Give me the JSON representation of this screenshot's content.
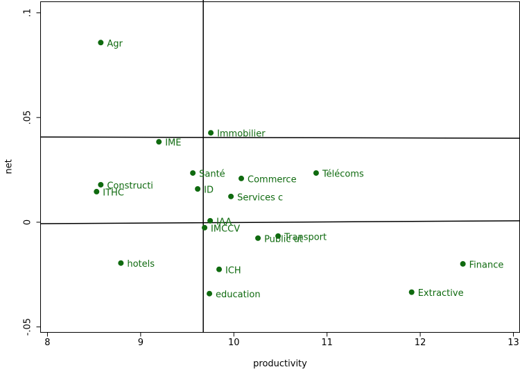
{
  "chart_data": {
    "type": "scatter",
    "xlabel": "productivity",
    "ylabel": "net",
    "xlim": [
      7.926,
      13.067
    ],
    "ylim": [
      -0.0526,
      0.1053
    ],
    "xticks": [
      8,
      9,
      10,
      11,
      12,
      13
    ],
    "yticks": [
      {
        "value": -0.05,
        "label": "-.05"
      },
      0,
      {
        "value": 0.05,
        "label": ".05"
      },
      {
        "value": 0.1,
        "label": ".1"
      }
    ],
    "color": "#0f6a0f",
    "labels": [
      "Agr",
      "Immobilier",
      "IME",
      "Santé",
      "Commerce",
      "Télécoms",
      "Constructi",
      "ITHC",
      "ID",
      "Services c",
      "IAA",
      "IMCCV",
      "Public ut",
      "Transport",
      "hotels",
      "ICH",
      "education",
      "Finance",
      "Extractive"
    ],
    "x": [
      8.572,
      9.753,
      9.196,
      9.56,
      10.08,
      10.883,
      8.572,
      8.527,
      9.612,
      9.969,
      9.746,
      9.686,
      10.259,
      10.475,
      8.788,
      9.842,
      9.738,
      12.458,
      11.908
    ],
    "y": [
      0.0858,
      0.0427,
      0.0384,
      0.0235,
      0.0209,
      0.0235,
      0.0179,
      0.0146,
      0.0159,
      0.0123,
      0.0007,
      -0.0026,
      -0.0076,
      -0.0066,
      -0.0195,
      -0.0225,
      -0.0341,
      -0.0199,
      -0.0334
    ],
    "vline": 9.672,
    "hlines": [
      [
        0.0407,
        0.0401
      ],
      [
        -0.0007,
        0.0007
      ]
    ]
  }
}
